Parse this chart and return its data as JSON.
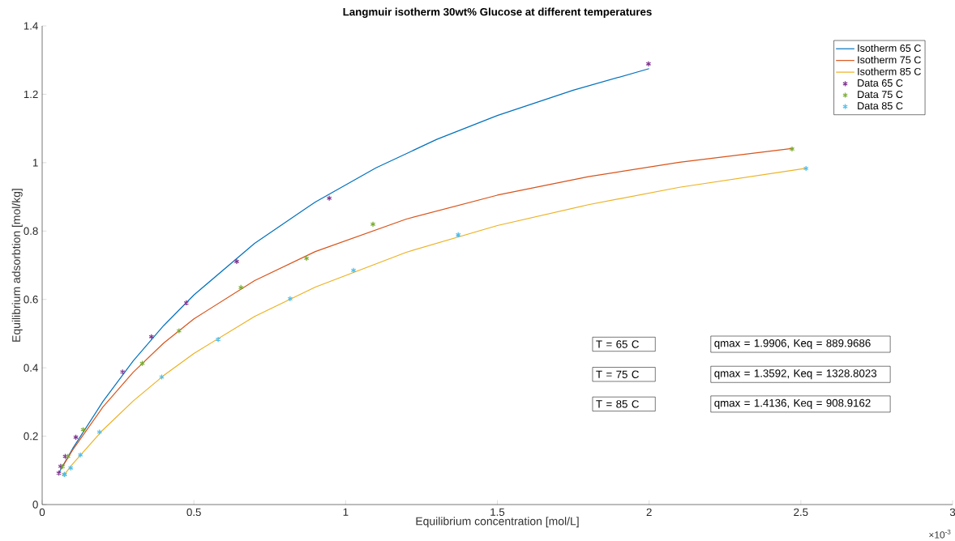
{
  "chart_data": {
    "type": "line",
    "title": "Langmuir isotherm 30wt% Glucose at different temperatures",
    "xlabel": "Equilibrium concentration [mol/L]",
    "ylabel": "Equilibrium adsorbtion [mol/kg]",
    "xlim": [
      0,
      3
    ],
    "ylim": [
      0,
      1.4
    ],
    "xticks": [
      0,
      0.5,
      1,
      1.5,
      2,
      2.5,
      3
    ],
    "yticks": [
      0,
      0.2,
      0.4,
      0.6,
      0.8,
      1,
      1.2,
      1.4
    ],
    "legend": "top right",
    "grid": false,
    "marker": "cross",
    "annotations": [
      "T = 65 C",
      "qmax = 1.9906, Keq = 889.9686",
      "T = 75 C",
      "qmax = 1.3592, Keq = 1328.8023",
      "T = 85 C",
      "qmax = 1.4136, Keq = 908.9162",
      "×10$^{-3}$"
    ],
    "series": [
      {
        "name": "Isotherm 65 C",
        "marker": "none",
        "color": "#0072bd",
        "x": [
          0.055,
          0.1,
          0.2,
          0.3,
          0.4,
          0.5,
          0.7,
          0.9,
          1.1,
          1.3,
          1.5,
          1.75,
          2.0
        ],
        "values": [
          0.093,
          0.163,
          0.301,
          0.42,
          0.523,
          0.613,
          0.764,
          0.885,
          0.985,
          1.068,
          1.138,
          1.212,
          1.275
        ]
      },
      {
        "name": "Isotherm 75 C",
        "marker": "none",
        "color": "#d95319",
        "x": [
          0.065,
          0.1,
          0.2,
          0.3,
          0.4,
          0.5,
          0.7,
          0.9,
          1.2,
          1.5,
          1.8,
          2.1,
          2.475
        ],
        "values": [
          0.108,
          0.159,
          0.285,
          0.387,
          0.472,
          0.543,
          0.655,
          0.74,
          0.835,
          0.905,
          0.959,
          1.001,
          1.042
        ]
      },
      {
        "name": "Isotherm 85 C",
        "marker": "none",
        "color": "#edb120",
        "x": [
          0.075,
          0.1,
          0.2,
          0.3,
          0.4,
          0.5,
          0.7,
          0.9,
          1.2,
          1.5,
          1.8,
          2.1,
          2.52
        ],
        "values": [
          0.09,
          0.118,
          0.218,
          0.303,
          0.377,
          0.442,
          0.55,
          0.636,
          0.738,
          0.816,
          0.877,
          0.928,
          0.984
        ]
      },
      {
        "name": "Data 65 C",
        "type": "scatter",
        "color": "#7e2f8e",
        "x": [
          0.055,
          0.061,
          0.076,
          0.111,
          0.265,
          0.36,
          0.475,
          0.641,
          0.946,
          1.998
        ],
        "values": [
          0.092,
          0.112,
          0.141,
          0.197,
          0.388,
          0.491,
          0.59,
          0.711,
          0.896,
          1.289
        ]
      },
      {
        "name": "Data 75 C",
        "type": "scatter",
        "color": "#77ac30",
        "x": [
          0.073,
          0.067,
          0.085,
          0.135,
          0.33,
          0.451,
          0.655,
          0.871,
          1.09,
          2.471
        ],
        "values": [
          0.088,
          0.111,
          0.141,
          0.219,
          0.413,
          0.508,
          0.635,
          0.72,
          0.82,
          1.04
        ]
      },
      {
        "name": "Data 85 C",
        "type": "scatter",
        "color": "#4dbeee",
        "x": [
          0.074,
          0.094,
          0.126,
          0.189,
          0.394,
          0.58,
          0.817,
          1.026,
          1.371,
          2.517
        ],
        "values": [
          0.088,
          0.107,
          0.145,
          0.212,
          0.373,
          0.483,
          0.602,
          0.685,
          0.789,
          0.983
        ]
      }
    ]
  }
}
